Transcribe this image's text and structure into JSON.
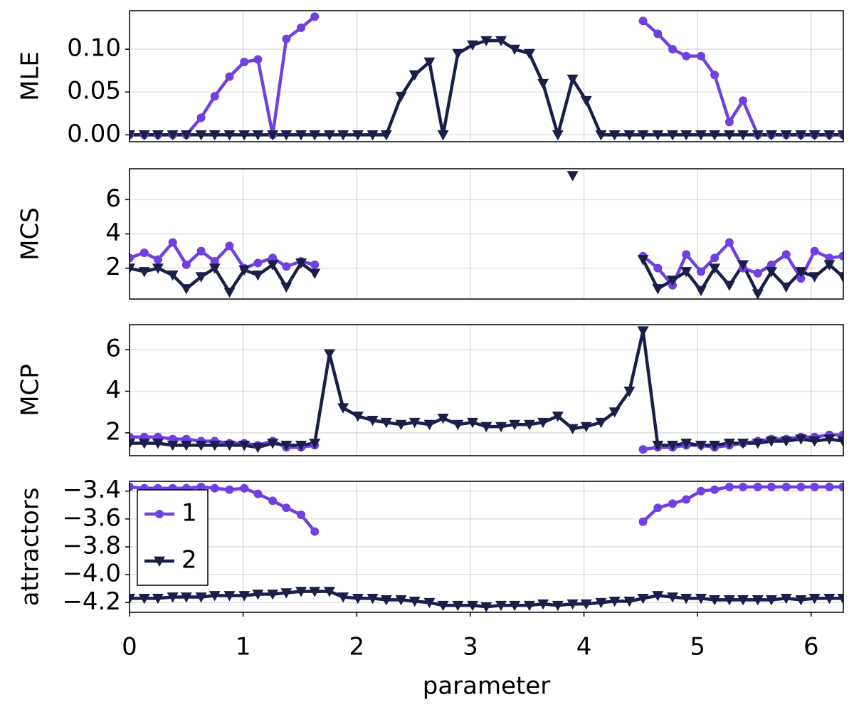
{
  "chart_data": [
    {
      "type": "line",
      "ylabel": "MLE",
      "xlim": [
        0,
        6.283
      ],
      "ylim": [
        -0.008,
        0.145
      ],
      "yticks": [
        {
          "value": 0,
          "label": "0.00"
        },
        {
          "value": 0.05,
          "label": "0.05"
        },
        {
          "value": 0.1,
          "label": "0.10"
        }
      ],
      "grid": true,
      "x": [
        0,
        0.13,
        0.25,
        0.38,
        0.5,
        0.63,
        0.75,
        0.88,
        1.01,
        1.13,
        1.26,
        1.38,
        1.51,
        1.63,
        1.76,
        1.88,
        2.01,
        2.14,
        2.26,
        2.39,
        2.51,
        2.64,
        2.76,
        2.89,
        3.02,
        3.14,
        3.27,
        3.39,
        3.52,
        3.64,
        3.77,
        3.9,
        4.02,
        4.15,
        4.27,
        4.4,
        4.52,
        4.65,
        4.78,
        4.9,
        5.03,
        5.15,
        5.28,
        5.4,
        5.53,
        5.65,
        5.78,
        5.91,
        6.03,
        6.16,
        6.28
      ],
      "series": [
        {
          "color": "#7040e0",
          "marker": "circle",
          "values": [
            0,
            0,
            0,
            0,
            0,
            0.02,
            0.045,
            0.068,
            0.085,
            0.088,
            0,
            0.112,
            0.125,
            0.138,
            null,
            null,
            null,
            null,
            null,
            null,
            null,
            null,
            null,
            null,
            null,
            null,
            null,
            null,
            null,
            null,
            null,
            null,
            null,
            null,
            null,
            null,
            0.133,
            0.118,
            0.1,
            0.092,
            0.092,
            0.07,
            0.015,
            0.04,
            0,
            0,
            0,
            0,
            0,
            0,
            0
          ]
        },
        {
          "color": "#1a1f4a",
          "marker": "triangle-down",
          "values": [
            0,
            0,
            0,
            0,
            0,
            0,
            0,
            0,
            0,
            0,
            0,
            0,
            0,
            0,
            0,
            0,
            0,
            0,
            0,
            0.045,
            0.07,
            0.085,
            0,
            0.095,
            0.105,
            0.11,
            0.11,
            0.1,
            0.095,
            0.06,
            0,
            0.065,
            0.04,
            0,
            0,
            0,
            0,
            0,
            0,
            0,
            0,
            0,
            0,
            0,
            0,
            0,
            0,
            0,
            0,
            0,
            0
          ]
        }
      ]
    },
    {
      "type": "line",
      "ylabel": "MCS",
      "xlim": [
        0,
        6.283
      ],
      "ylim": [
        0.2,
        7.8
      ],
      "yticks": [
        2,
        4,
        6
      ],
      "grid": true,
      "x": [
        0,
        0.13,
        0.25,
        0.38,
        0.5,
        0.63,
        0.75,
        0.88,
        1.01,
        1.13,
        1.26,
        1.38,
        1.51,
        1.63,
        1.76,
        1.88,
        2.01,
        2.14,
        2.26,
        2.39,
        2.51,
        2.64,
        2.76,
        2.89,
        3.02,
        3.14,
        3.27,
        3.39,
        3.52,
        3.64,
        3.77,
        3.9,
        4.02,
        4.15,
        4.27,
        4.4,
        4.52,
        4.65,
        4.78,
        4.9,
        5.03,
        5.15,
        5.28,
        5.4,
        5.53,
        5.65,
        5.78,
        5.91,
        6.03,
        6.16,
        6.28
      ],
      "series": [
        {
          "color": "#7040e0",
          "marker": "circle",
          "values": [
            2.6,
            2.9,
            2.5,
            3.5,
            2.2,
            3.0,
            2.4,
            3.3,
            2.0,
            2.3,
            2.6,
            2.1,
            2.4,
            2.2,
            null,
            null,
            null,
            null,
            null,
            null,
            null,
            null,
            null,
            null,
            null,
            null,
            null,
            null,
            null,
            null,
            null,
            null,
            null,
            null,
            null,
            null,
            2.7,
            2.0,
            1.0,
            2.8,
            1.8,
            2.6,
            3.5,
            2.0,
            1.7,
            2.2,
            2.8,
            1.4,
            3.0,
            2.6,
            2.7
          ]
        },
        {
          "color": "#1a1f4a",
          "marker": "triangle-down",
          "values": [
            2.0,
            1.8,
            2.0,
            1.6,
            0.8,
            1.5,
            2.0,
            0.6,
            1.9,
            1.6,
            2.2,
            0.9,
            2.3,
            1.7,
            null,
            null,
            null,
            null,
            null,
            null,
            null,
            null,
            null,
            null,
            null,
            null,
            null,
            null,
            null,
            null,
            null,
            7.4,
            null,
            null,
            null,
            null,
            2.5,
            0.8,
            1.3,
            1.8,
            0.7,
            2.0,
            1.0,
            2.2,
            0.5,
            1.8,
            0.9,
            1.8,
            1.5,
            2.2,
            1.5
          ]
        }
      ]
    },
    {
      "type": "line",
      "ylabel": "MCP",
      "xlim": [
        0,
        6.283
      ],
      "ylim": [
        0.9,
        7.2
      ],
      "yticks": [
        2,
        4,
        6
      ],
      "grid": true,
      "x": [
        0,
        0.13,
        0.25,
        0.38,
        0.5,
        0.63,
        0.75,
        0.88,
        1.01,
        1.13,
        1.26,
        1.38,
        1.51,
        1.63,
        1.76,
        1.88,
        2.01,
        2.14,
        2.26,
        2.39,
        2.51,
        2.64,
        2.76,
        2.89,
        3.02,
        3.14,
        3.27,
        3.39,
        3.52,
        3.64,
        3.77,
        3.9,
        4.02,
        4.15,
        4.27,
        4.4,
        4.52,
        4.65,
        4.78,
        4.9,
        5.03,
        5.15,
        5.28,
        5.4,
        5.53,
        5.65,
        5.78,
        5.91,
        6.03,
        6.16,
        6.28
      ],
      "series": [
        {
          "color": "#7040e0",
          "marker": "circle",
          "values": [
            1.8,
            1.8,
            1.8,
            1.7,
            1.7,
            1.6,
            1.6,
            1.5,
            1.5,
            1.4,
            1.6,
            1.3,
            1.3,
            1.4,
            null,
            null,
            null,
            null,
            null,
            null,
            null,
            null,
            null,
            null,
            null,
            null,
            null,
            null,
            null,
            null,
            null,
            null,
            null,
            null,
            null,
            null,
            1.2,
            1.3,
            1.3,
            1.4,
            1.4,
            1.3,
            1.4,
            1.5,
            1.6,
            1.7,
            1.7,
            1.8,
            1.8,
            1.9,
            1.9
          ]
        },
        {
          "color": "#1a1f4a",
          "marker": "triangle-down",
          "values": [
            1.5,
            1.5,
            1.5,
            1.4,
            1.4,
            1.4,
            1.4,
            1.4,
            1.4,
            1.3,
            1.5,
            1.4,
            1.4,
            1.5,
            5.8,
            3.2,
            2.8,
            2.6,
            2.5,
            2.4,
            2.5,
            2.4,
            2.7,
            2.4,
            2.5,
            2.3,
            2.3,
            2.4,
            2.4,
            2.5,
            2.8,
            2.2,
            2.3,
            2.5,
            3.0,
            4.0,
            6.9,
            1.4,
            1.4,
            1.5,
            1.4,
            1.4,
            1.5,
            1.5,
            1.5,
            1.6,
            1.6,
            1.7,
            1.6,
            1.7,
            1.6
          ]
        }
      ]
    },
    {
      "type": "line",
      "ylabel": "attractors",
      "xlabel": "parameter",
      "xlim": [
        0,
        6.283
      ],
      "ylim": [
        -4.27,
        -3.33
      ],
      "xticks": [
        0,
        1,
        2,
        3,
        4,
        5,
        6
      ],
      "yticks": [
        {
          "value": -4.2,
          "label": "−4.2"
        },
        {
          "value": -4.0,
          "label": "−4.0"
        },
        {
          "value": -3.8,
          "label": "−3.8"
        },
        {
          "value": -3.6,
          "label": "−3.6"
        },
        {
          "value": -3.4,
          "label": "−3.4"
        }
      ],
      "grid": true,
      "legend": "upper left",
      "x": [
        0,
        0.13,
        0.25,
        0.38,
        0.5,
        0.63,
        0.75,
        0.88,
        1.01,
        1.13,
        1.26,
        1.38,
        1.51,
        1.63,
        1.76,
        1.88,
        2.01,
        2.14,
        2.26,
        2.39,
        2.51,
        2.64,
        2.76,
        2.89,
        3.02,
        3.14,
        3.27,
        3.39,
        3.52,
        3.64,
        3.77,
        3.9,
        4.02,
        4.15,
        4.27,
        4.4,
        4.52,
        4.65,
        4.78,
        4.9,
        5.03,
        5.15,
        5.28,
        5.4,
        5.53,
        5.65,
        5.78,
        5.91,
        6.03,
        6.16,
        6.28
      ],
      "series": [
        {
          "name": "1",
          "color": "#7040e0",
          "marker": "circle",
          "values": [
            -3.37,
            -3.38,
            -3.38,
            -3.38,
            -3.38,
            -3.37,
            -3.38,
            -3.39,
            -3.38,
            -3.42,
            -3.47,
            -3.52,
            -3.57,
            -3.69,
            null,
            null,
            null,
            null,
            null,
            null,
            null,
            null,
            null,
            null,
            null,
            null,
            null,
            null,
            null,
            null,
            null,
            null,
            null,
            null,
            null,
            null,
            -3.62,
            -3.52,
            -3.49,
            -3.46,
            -3.4,
            -3.39,
            -3.37,
            -3.37,
            -3.37,
            -3.37,
            -3.37,
            -3.37,
            -3.37,
            -3.37,
            -3.37
          ]
        },
        {
          "name": "2",
          "color": "#1a1f4a",
          "marker": "triangle-down",
          "values": [
            -4.17,
            -4.17,
            -4.17,
            -4.16,
            -4.16,
            -4.16,
            -4.15,
            -4.15,
            -4.15,
            -4.14,
            -4.14,
            -4.13,
            -4.12,
            -4.12,
            -4.12,
            -4.16,
            -4.17,
            -4.17,
            -4.18,
            -4.18,
            -4.19,
            -4.2,
            -4.22,
            -4.22,
            -4.22,
            -4.23,
            -4.22,
            -4.22,
            -4.22,
            -4.21,
            -4.22,
            -4.21,
            -4.21,
            -4.2,
            -4.19,
            -4.19,
            -4.17,
            -4.15,
            -4.16,
            -4.17,
            -4.17,
            -4.18,
            -4.18,
            -4.18,
            -4.18,
            -4.18,
            -4.17,
            -4.18,
            -4.17,
            -4.17,
            -4.17
          ]
        }
      ]
    }
  ]
}
